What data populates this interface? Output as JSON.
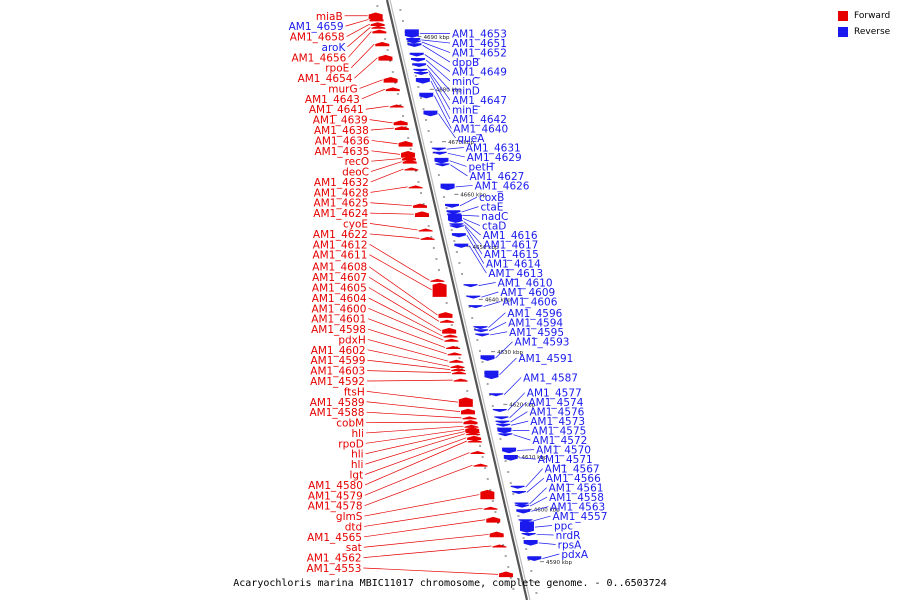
{
  "colors": {
    "forward": "#e60000",
    "reverse": "#1a1aee",
    "axis": "#666666"
  },
  "legend": {
    "forward_label": "Forward",
    "reverse_label": "Reverse"
  },
  "caption": "Acaryochloris marina MBIC11017 chromosome, complete genome. - 0..6503724",
  "scale": [
    {
      "label": "4590 kbp",
      "pos": 4590
    },
    {
      "label": "4600 kbp",
      "pos": 4600
    },
    {
      "label": "4610 kbp",
      "pos": 4610
    },
    {
      "label": "4620 kbp",
      "pos": 4620
    },
    {
      "label": "4630 kbp",
      "pos": 4630
    },
    {
      "label": "4640 kbp",
      "pos": 4640
    },
    {
      "label": "4650 kbp",
      "pos": 4650
    },
    {
      "label": "4660 kbp",
      "pos": 4660
    },
    {
      "label": "4670 kbp",
      "pos": 4670
    },
    {
      "label": "4680 kbp",
      "pos": 4680
    },
    {
      "label": "4690 kbp",
      "pos": 4690
    }
  ],
  "forward_genes": [
    {
      "label": "miaB",
      "pos": 4694.0,
      "size": 1.4
    },
    {
      "label": "AM1_4659",
      "pos": 4693.3,
      "size": 0.8
    },
    {
      "label": "AM1_4658",
      "pos": 4692.4,
      "size": 0.8
    },
    {
      "label": "aroK",
      "pos": 4691.8,
      "size": 0.6
    },
    {
      "label": "AM1_4656",
      "pos": 4691.0,
      "size": 0.8
    },
    {
      "label": "rpoE",
      "pos": 4688.6,
      "size": 0.9
    },
    {
      "label": "AM1_4654",
      "pos": 4686.0,
      "size": 1.2
    },
    {
      "label": "murG",
      "pos": 4681.8,
      "size": 1.2
    },
    {
      "label": "AM1_4643",
      "pos": 4680.0,
      "size": 0.8
    },
    {
      "label": "AM1_4641",
      "pos": 4676.8,
      "size": 0.6
    },
    {
      "label": "AM1_4639",
      "pos": 4673.6,
      "size": 1.0
    },
    {
      "label": "AM1_4638",
      "pos": 4672.6,
      "size": 0.8
    },
    {
      "label": "AM1_4636",
      "pos": 4669.6,
      "size": 1.2
    },
    {
      "label": "AM1_4635",
      "pos": 4667.6,
      "size": 1.4
    },
    {
      "label": "recO",
      "pos": 4666.8,
      "size": 0.8
    },
    {
      "label": "deoC",
      "pos": 4666.2,
      "size": 0.8
    },
    {
      "label": "AM1_4632",
      "pos": 4664.8,
      "size": 0.6
    },
    {
      "label": "AM1_4628",
      "pos": 4661.4,
      "size": 0.6
    },
    {
      "label": "AM1_4625",
      "pos": 4657.8,
      "size": 0.9
    },
    {
      "label": "AM1_4624",
      "pos": 4656.2,
      "size": 1.2
    },
    {
      "label": "cyoE",
      "pos": 4653.2,
      "size": 0.6
    },
    {
      "label": "AM1_4622",
      "pos": 4651.6,
      "size": 0.6
    },
    {
      "label": "AM1_4612",
      "pos": 4643.6,
      "size": 0.6
    },
    {
      "label": "AM1_4611",
      "pos": 4641.8,
      "size": 3.0
    },
    {
      "label": "AM1_4608",
      "pos": 4637.0,
      "size": 1.2
    },
    {
      "label": "AM1_4607",
      "pos": 4635.8,
      "size": 0.6
    },
    {
      "label": "AM1_4605",
      "pos": 4634.0,
      "size": 1.2
    },
    {
      "label": "AM1_4604",
      "pos": 4633.0,
      "size": 0.6
    },
    {
      "label": "AM1_4600",
      "pos": 4632.2,
      "size": 0.6
    },
    {
      "label": "AM1_4601",
      "pos": 4630.8,
      "size": 0.6
    },
    {
      "label": "AM1_4598",
      "pos": 4629.6,
      "size": 0.6
    },
    {
      "label": "pdxH",
      "pos": 4628.2,
      "size": 0.6
    },
    {
      "label": "AM1_4602",
      "pos": 4627.2,
      "size": 0.6
    },
    {
      "label": "AM1_4599",
      "pos": 4626.6,
      "size": 0.6
    },
    {
      "label": "AM1_4603",
      "pos": 4626.0,
      "size": 0.6
    },
    {
      "label": "AM1_4592",
      "pos": 4624.6,
      "size": 0.6
    },
    {
      "label": "ftsH",
      "pos": 4620.4,
      "size": 2.0
    },
    {
      "label": "AM1_4589",
      "pos": 4618.6,
      "size": 1.2
    },
    {
      "label": "AM1_4588",
      "pos": 4617.4,
      "size": 0.6
    },
    {
      "label": "cobM",
      "pos": 4616.6,
      "size": 0.9
    },
    {
      "label": "hli",
      "pos": 4615.8,
      "size": 0.4
    },
    {
      "label": "rpoD",
      "pos": 4615.2,
      "size": 1.0
    },
    {
      "label": "hli",
      "pos": 4614.8,
      "size": 0.4
    },
    {
      "label": "hli",
      "pos": 4614.4,
      "size": 0.4
    },
    {
      "label": "lgt",
      "pos": 4613.6,
      "size": 0.9
    },
    {
      "label": "AM1_4580",
      "pos": 4613.0,
      "size": 0.6
    },
    {
      "label": "AM1_4579",
      "pos": 4610.8,
      "size": 0.6
    },
    {
      "label": "AM1_4578",
      "pos": 4608.4,
      "size": 0.6
    },
    {
      "label": "glmS",
      "pos": 4602.8,
      "size": 2.0
    },
    {
      "label": "dtd",
      "pos": 4600.2,
      "size": 0.6
    },
    {
      "label": "AM1_4565",
      "pos": 4598.0,
      "size": 1.2
    },
    {
      "label": "sat",
      "pos": 4595.2,
      "size": 1.2
    },
    {
      "label": "AM1_4562",
      "pos": 4593.0,
      "size": 0.6
    },
    {
      "label": "AM1_4553",
      "pos": 4587.6,
      "size": 1.2
    }
  ],
  "reverse_genes": [
    {
      "label": "AM1_4653",
      "pos": 4690.6,
      "size": 1.8
    },
    {
      "label": "AM1_4651",
      "pos": 4689.4,
      "size": 0.8
    },
    {
      "label": "AM1_4652",
      "pos": 4689.0,
      "size": 0.6
    },
    {
      "label": "dppB",
      "pos": 4688.4,
      "size": 0.8
    },
    {
      "label": "AM1_4649",
      "pos": 4686.6,
      "size": 0.8
    },
    {
      "label": "minC",
      "pos": 4685.6,
      "size": 0.8
    },
    {
      "label": "minD",
      "pos": 4684.6,
      "size": 0.8
    },
    {
      "label": "AM1_4647",
      "pos": 4683.6,
      "size": 0.6
    },
    {
      "label": "minE",
      "pos": 4683.0,
      "size": 0.6
    },
    {
      "label": "AM1_4642",
      "pos": 4681.6,
      "size": 1.2
    },
    {
      "label": "AM1_4640",
      "pos": 4678.8,
      "size": 1.2
    },
    {
      "label": "queA",
      "pos": 4675.4,
      "size": 1.2
    },
    {
      "label": "AM1_4631",
      "pos": 4668.6,
      "size": 0.6
    },
    {
      "label": "AM1_4629",
      "pos": 4667.8,
      "size": 0.6
    },
    {
      "label": "petH",
      "pos": 4666.4,
      "size": 1.2
    },
    {
      "label": "AM1_4627",
      "pos": 4665.6,
      "size": 0.6
    },
    {
      "label": "AM1_4626",
      "pos": 4661.4,
      "size": 1.4
    },
    {
      "label": "coxB",
      "pos": 4657.8,
      "size": 0.8
    },
    {
      "label": "ctaE",
      "pos": 4656.6,
      "size": 0.8
    },
    {
      "label": "nadC",
      "pos": 4656.0,
      "size": 0.8
    },
    {
      "label": "ctaD",
      "pos": 4655.4,
      "size": 1.6
    },
    {
      "label": "AM1_4616",
      "pos": 4654.8,
      "size": 0.6
    },
    {
      "label": "AM1_4617",
      "pos": 4654.2,
      "size": 0.6
    },
    {
      "label": "AM1_4615",
      "pos": 4653.8,
      "size": 0.6
    },
    {
      "label": "AM1_4614",
      "pos": 4652.2,
      "size": 0.9
    },
    {
      "label": "AM1_4613",
      "pos": 4650.2,
      "size": 0.9
    },
    {
      "label": "AM1_4610",
      "pos": 4642.6,
      "size": 0.6
    },
    {
      "label": "AM1_4609",
      "pos": 4640.4,
      "size": 0.6
    },
    {
      "label": "AM1_4606",
      "pos": 4638.6,
      "size": 0.6
    },
    {
      "label": "AM1_4596",
      "pos": 4634.6,
      "size": 0.6
    },
    {
      "label": "AM1_4594",
      "pos": 4634.0,
      "size": 0.6
    },
    {
      "label": "AM1_4595",
      "pos": 4633.2,
      "size": 0.6
    },
    {
      "label": "AM1_4593",
      "pos": 4628.8,
      "size": 1.2
    },
    {
      "label": "AM1_4591",
      "pos": 4625.6,
      "size": 1.8
    },
    {
      "label": "AM1_4587",
      "pos": 4621.8,
      "size": 0.6
    },
    {
      "label": "AM1_4577",
      "pos": 4618.8,
      "size": 0.6
    },
    {
      "label": "AM1_4574",
      "pos": 4617.4,
      "size": 0.6
    },
    {
      "label": "AM1_4576",
      "pos": 4616.6,
      "size": 0.6
    },
    {
      "label": "AM1_4573",
      "pos": 4616.0,
      "size": 0.6
    },
    {
      "label": "AM1_4575",
      "pos": 4615.0,
      "size": 1.2
    },
    {
      "label": "AM1_4572",
      "pos": 4614.2,
      "size": 0.6
    },
    {
      "label": "AM1_4570",
      "pos": 4611.2,
      "size": 1.2
    },
    {
      "label": "AM1_4571",
      "pos": 4609.8,
      "size": 1.2
    },
    {
      "label": "AM1_4567",
      "pos": 4604.2,
      "size": 0.6
    },
    {
      "label": "AM1_4566",
      "pos": 4603.2,
      "size": 0.6
    },
    {
      "label": "AM1_4561",
      "pos": 4601.0,
      "size": 0.6
    },
    {
      "label": "AM1_4558",
      "pos": 4600.6,
      "size": 0.6
    },
    {
      "label": "AM1_4563",
      "pos": 4599.6,
      "size": 0.9
    },
    {
      "label": "AM1_4557",
      "pos": 4597.8,
      "size": 0.6
    },
    {
      "label": "ppc",
      "pos": 4596.6,
      "size": 2.4
    },
    {
      "label": "nrdR",
      "pos": 4595.2,
      "size": 0.6
    },
    {
      "label": "rpsA",
      "pos": 4593.6,
      "size": 1.2
    },
    {
      "label": "pdxA",
      "pos": 4590.6,
      "size": 1.0
    }
  ]
}
